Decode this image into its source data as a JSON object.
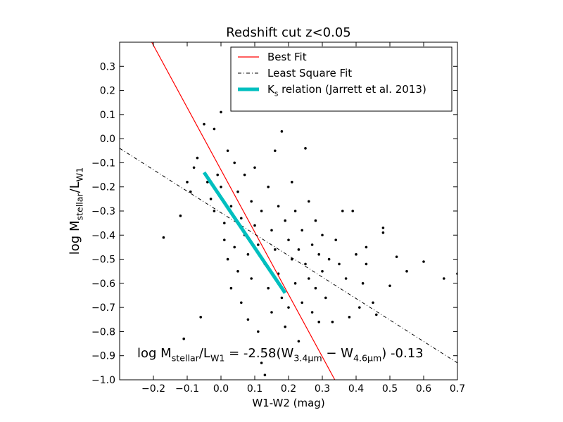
{
  "chart_data": {
    "type": "scatter",
    "title": "Redshift cut z<0.05",
    "x_label": "W1-W2 (mag)",
    "y_label": [
      {
        "text": "log M"
      },
      {
        "text": "stellar",
        "sub": true
      },
      {
        "text": "/L"
      },
      {
        "text": "W1",
        "sub": true
      }
    ],
    "annotation": [
      {
        "text": "log M"
      },
      {
        "text": "stellar",
        "sub": true
      },
      {
        "text": "/L"
      },
      {
        "text": "W1",
        "sub": true
      },
      {
        "text": " = -2.58(W"
      },
      {
        "text": "3.4μm",
        "sub": true
      },
      {
        "text": " − W"
      },
      {
        "text": "4.6μm",
        "sub": true
      },
      {
        "text": ") -0.13"
      }
    ],
    "xlim": [
      -0.3,
      0.7
    ],
    "ylim": [
      -1.0,
      0.4
    ],
    "xticks": [
      {
        "value": -0.2,
        "label": "−0.2"
      },
      {
        "value": -0.1,
        "label": "−0.1"
      },
      {
        "value": 0,
        "label": "0.0"
      },
      0.1,
      0.2,
      0.3,
      0.4,
      0.5,
      0.6,
      0.7
    ],
    "yticks": [
      {
        "value": -1.0,
        "label": "−1.0"
      },
      {
        "value": -0.9,
        "label": "−0.9"
      },
      {
        "value": -0.8,
        "label": "−0.8"
      },
      {
        "value": -0.7,
        "label": "−0.7"
      },
      {
        "value": -0.6,
        "label": "−0.6"
      },
      {
        "value": -0.5,
        "label": "−0.5"
      },
      {
        "value": -0.4,
        "label": "−0.4"
      },
      {
        "value": -0.3,
        "label": "−0.3"
      },
      {
        "value": -0.2,
        "label": "−0.2"
      },
      {
        "value": -0.1,
        "label": "−0.1"
      },
      {
        "value": 0,
        "label": "0.0"
      },
      0.1,
      0.2,
      0.3
    ],
    "legend": "upper right",
    "series": [
      {
        "style": "points",
        "color": "#000000",
        "x": [
          -0.17,
          -0.11,
          -0.09,
          -0.08,
          -0.07,
          -0.06,
          -0.05,
          -0.04,
          -0.03,
          -0.02,
          -0.02,
          -0.01,
          0,
          0,
          0.01,
          0.01,
          0.02,
          0.02,
          0.03,
          0.03,
          0.04,
          0.04,
          0.05,
          0.05,
          0.06,
          0.06,
          0.07,
          0.07,
          0.08,
          0.08,
          0.09,
          0.09,
          0.1,
          0.1,
          0.11,
          0.11,
          0.12,
          0.12,
          0.13,
          0.13,
          0.14,
          0.14,
          0.15,
          0.15,
          0.16,
          0.16,
          0.17,
          0.17,
          0.18,
          0.18,
          0.19,
          0.19,
          0.2,
          0.2,
          0.21,
          0.21,
          0.22,
          0.22,
          0.23,
          0.23,
          0.24,
          0.24,
          0.25,
          0.25,
          0.26,
          0.26,
          0.27,
          0.27,
          0.28,
          0.28,
          0.29,
          0.29,
          0.3,
          0.3,
          0.31,
          0.32,
          0.33,
          0.34,
          0.35,
          0.36,
          0.37,
          0.38,
          0.39,
          0.4,
          0.41,
          0.42,
          0.43,
          0.43,
          0.45,
          0.46,
          0.48,
          0.48,
          0.5,
          0.52,
          0.55,
          0.6,
          0.66,
          0.7,
          -0.12,
          -0.1
        ],
        "y": [
          -0.41,
          -0.83,
          -0.22,
          -0.12,
          -0.08,
          -0.74,
          0.06,
          -0.18,
          -0.25,
          0.04,
          -0.3,
          -0.15,
          0.11,
          -0.2,
          -0.35,
          -0.42,
          -0.05,
          -0.5,
          -0.28,
          -0.62,
          -0.1,
          -0.45,
          -0.22,
          -0.55,
          -0.33,
          -0.68,
          -0.15,
          -0.4,
          -0.48,
          -0.75,
          -0.26,
          -0.58,
          -0.12,
          -0.36,
          -0.44,
          -0.8,
          -0.93,
          -0.3,
          -0.98,
          -0.52,
          -0.2,
          -0.62,
          -0.38,
          -0.72,
          -0.46,
          -0.05,
          -0.28,
          -0.56,
          0.03,
          -0.66,
          -0.34,
          -0.78,
          -0.42,
          -0.7,
          -0.18,
          -0.5,
          -0.6,
          -0.3,
          -0.84,
          -0.46,
          -0.38,
          -0.68,
          -0.04,
          -0.52,
          -0.26,
          -0.58,
          -0.44,
          -0.72,
          -0.34,
          -0.62,
          -0.48,
          -0.76,
          -0.4,
          -0.55,
          -0.66,
          -0.5,
          -0.76,
          -0.42,
          -0.52,
          -0.3,
          -0.58,
          -0.74,
          -0.3,
          -0.48,
          -0.7,
          -0.6,
          -0.45,
          -0.52,
          -0.68,
          -0.73,
          -0.37,
          -0.39,
          -0.61,
          -0.49,
          -0.55,
          -0.51,
          -0.58,
          -0.56,
          -0.32,
          -0.18
        ]
      },
      {
        "name": "Best Fit",
        "style": "solid",
        "color": "#ff0000",
        "x": [
          -0.205,
          0.337
        ],
        "y": [
          0.4,
          -1.0
        ]
      },
      {
        "name": "Least Square Fit",
        "style": "dashdot",
        "color": "#000000",
        "x": [
          -0.3,
          0.7
        ],
        "y": [
          -0.04,
          -0.93
        ]
      },
      {
        "name": [
          {
            "text": "K"
          },
          {
            "text": "s",
            "sub": true
          },
          {
            "text": " relation (Jarrett et al. 2013)"
          }
        ],
        "style": "thick",
        "color": "#00bfbf",
        "x": [
          -0.05,
          0.19
        ],
        "y": [
          -0.14,
          -0.64
        ]
      }
    ]
  }
}
